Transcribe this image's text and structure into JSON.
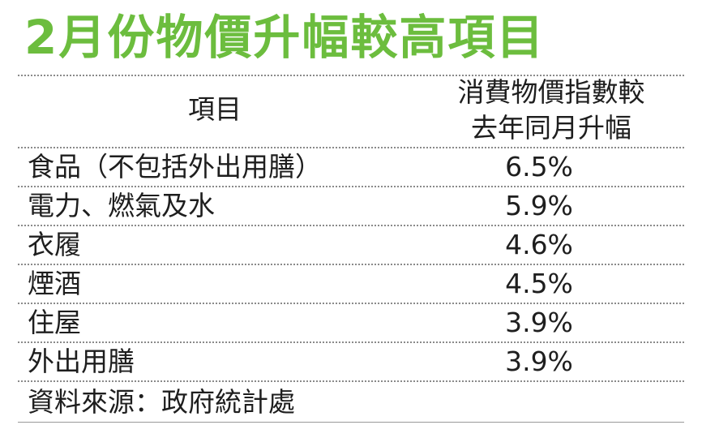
{
  "chart_data": {
    "type": "table",
    "title": "2月份物價升幅較高項目",
    "columns": [
      "項目",
      "消費物價指數較",
      "去年同月升幅"
    ],
    "rows": [
      {
        "label": "食品（不包括外出用膳）",
        "value": "6.5%"
      },
      {
        "label": "電力、燃氣及水",
        "value": "5.9%"
      },
      {
        "label": "衣履",
        "value": "4.6%"
      },
      {
        "label": "煙酒",
        "value": "4.5%"
      },
      {
        "label": "住屋",
        "value": "3.9%"
      },
      {
        "label": "外出用膳",
        "value": "3.9%"
      }
    ],
    "source": "資料來源：政府統計處"
  },
  "colors": {
    "title": "#6cbd3e",
    "text": "#1e1e1e",
    "rule": "#8a8a8a"
  }
}
